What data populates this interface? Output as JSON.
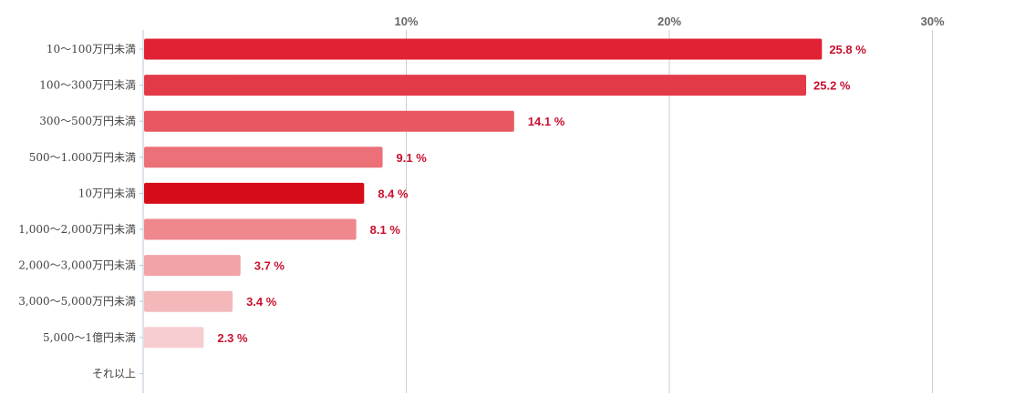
{
  "chart_data": {
    "type": "bar",
    "orientation": "horizontal",
    "title": "",
    "xlabel": "",
    "ylabel": "",
    "xlim": [
      0,
      34.5
    ],
    "x_ticks": [
      {
        "value": 10,
        "label": "10%"
      },
      {
        "value": 20,
        "label": "20%"
      },
      {
        "value": 30,
        "label": "30%"
      }
    ],
    "grid": "vertical",
    "legend": "none",
    "value_suffix": " %",
    "categories": [
      "10〜100万円未満",
      "100〜300万円未満",
      "300〜500万円未満",
      "500〜1.000万円未満",
      "10万円未満",
      "1,000〜2,000万円未満",
      "2,000〜3,000万円未満",
      "3,000〜5,000万円未満",
      "5,000〜1億円未満",
      "それ以上"
    ],
    "values": [
      25.8,
      25.2,
      14.1,
      9.1,
      8.4,
      8.1,
      3.7,
      3.4,
      2.3,
      0
    ],
    "value_labels": [
      "25.8 %",
      "25.2 %",
      "14.1 %",
      "9.1 %",
      "8.4 %",
      "8.1 %",
      "3.7 %",
      "3.4 %",
      "2.3 %",
      ""
    ],
    "colors": [
      "#e02234",
      "#e33a48",
      "#e85862",
      "#ec7078",
      "#d70c19",
      "#ef888d",
      "#f2a3a7",
      "#f4b8bb",
      "#f7cdd1",
      "#fae1e3"
    ],
    "grid_color": "#cccccc",
    "axis_color": "#b9c7d4",
    "label_color": "#c8102e"
  }
}
